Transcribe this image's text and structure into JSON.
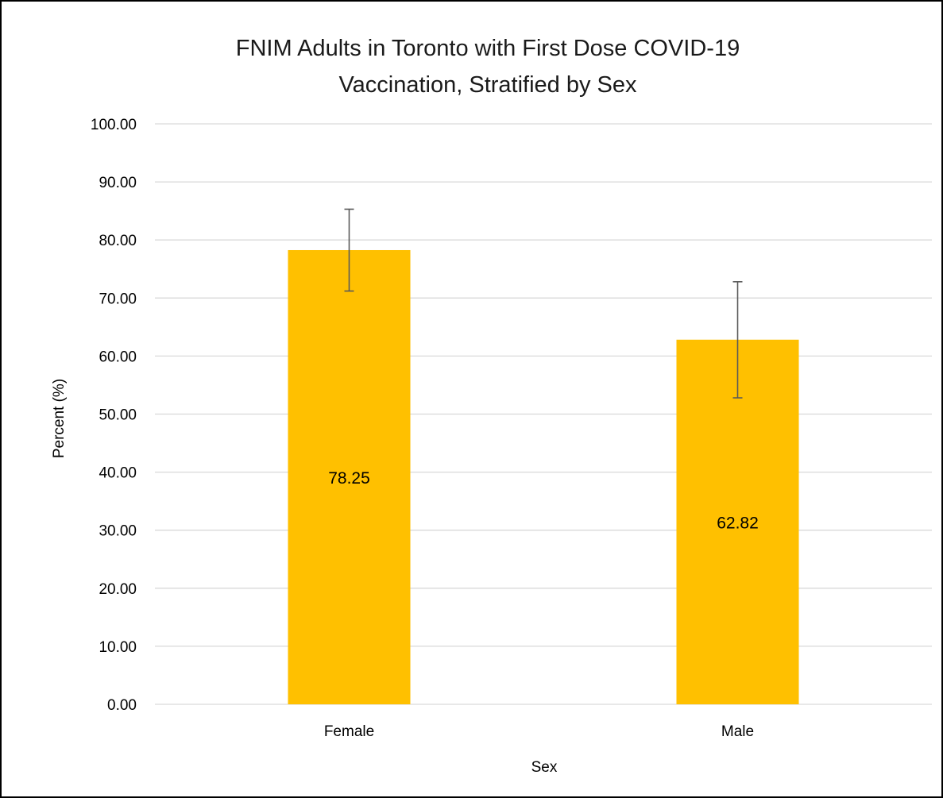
{
  "chart_data": {
    "type": "bar",
    "title_lines": [
      "FNIM Adults in Toronto with First Dose COVID-19",
      "Vaccination, Stratified by Sex"
    ],
    "categories": [
      "Female",
      "Male"
    ],
    "values": [
      78.25,
      62.82
    ],
    "data_labels": [
      "78.25",
      "62.82"
    ],
    "error_bars": [
      {
        "low": 71.2,
        "high": 85.3
      },
      {
        "low": 52.8,
        "high": 72.8
      }
    ],
    "xlabel": "Sex",
    "ylabel": "Percent (%)",
    "ylim": [
      0,
      100
    ],
    "yticks": [
      "0.00",
      "10.00",
      "20.00",
      "30.00",
      "40.00",
      "50.00",
      "60.00",
      "70.00",
      "80.00",
      "90.00",
      "100.00"
    ],
    "grid": true,
    "legend": "none",
    "colors": {
      "bar": "#FFC000",
      "gridline": "#D9D9D9",
      "error_bar": "#595959",
      "border": "#000000"
    }
  }
}
